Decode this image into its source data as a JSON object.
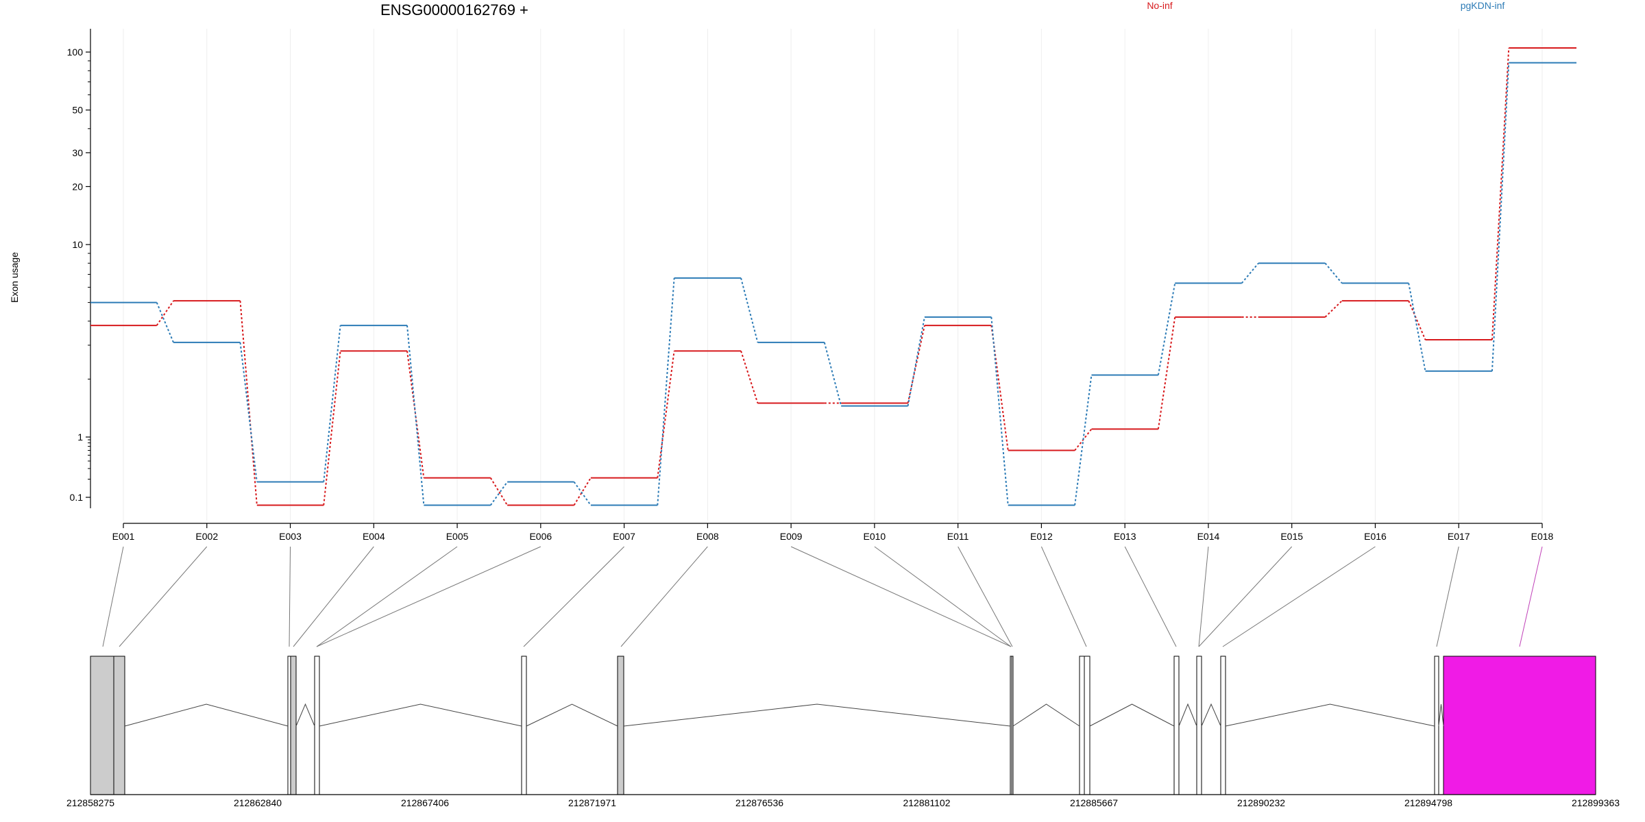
{
  "chart_data": {
    "type": "line",
    "title": "ENSG00000162769 +",
    "ylabel": "Exon usage",
    "y_scale": "log",
    "ylim": [
      0.08,
      130
    ],
    "yticks": [
      {
        "value": 0.1,
        "label": "0.1"
      },
      {
        "value": 1,
        "label": "1"
      },
      {
        "value": 10,
        "label": "10"
      },
      {
        "value": 20,
        "label": "20"
      },
      {
        "value": 30,
        "label": "30"
      },
      {
        "value": 50,
        "label": "50"
      },
      {
        "value": 100,
        "label": "100"
      }
    ],
    "categories": [
      "E001",
      "E002",
      "E003",
      "E004",
      "E005",
      "E006",
      "E007",
      "E008",
      "E009",
      "E010",
      "E011",
      "E012",
      "E013",
      "E014",
      "E015",
      "E016",
      "E017",
      "E018"
    ],
    "series": [
      {
        "name": "No-inf",
        "color": "#d7191c",
        "values": [
          3.8,
          5.1,
          0.077,
          2.8,
          0.21,
          0.077,
          0.21,
          2.8,
          1.5,
          1.5,
          3.8,
          0.6,
          1.1,
          4.2,
          4.2,
          5.1,
          3.2,
          105
        ]
      },
      {
        "name": "pgKDN-inf",
        "color": "#2c7bb6",
        "values": [
          5.0,
          3.1,
          0.18,
          3.8,
          0.077,
          0.18,
          0.077,
          6.7,
          3.1,
          1.45,
          4.2,
          0.077,
          2.1,
          6.3,
          8.0,
          6.3,
          2.2,
          88
        ]
      }
    ],
    "gene_model": {
      "coordinate_labels": [
        "212858275",
        "212862840",
        "212867406",
        "212871971",
        "212876536",
        "212881102",
        "212885667",
        "212890232",
        "212894798",
        "212899363"
      ],
      "highlight_color": "#f01be6",
      "exon_fill": "#cccccc"
    }
  }
}
